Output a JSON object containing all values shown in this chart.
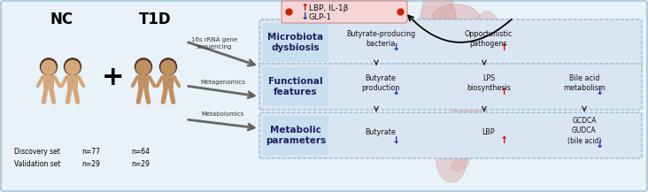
{
  "bg_color": "#e8f2f8",
  "nc_label": "NC",
  "t1d_label": "T1D",
  "plus_label": "+",
  "discovery_line1": "Discovery set",
  "discovery_n1": "n=77",
  "discovery_n2": "n=64",
  "validation_line1": "Validation set",
  "validation_n1": "n=29",
  "validation_n2": "n=29",
  "methods": [
    "16s rRNA gene\nsequencing",
    "Metagenomics",
    "Metabolomics"
  ],
  "row_labels": [
    "Microbiota\ndysbiosis",
    "Functional\nfeatures",
    "Metabolic\nparameters"
  ],
  "top_box_up": "↑ LBP, IL-1β",
  "top_box_down": "↓ GLP-1",
  "row1_col1": "Butyrate-producing\nbacteria",
  "row1_col2": "Opportunistic\npathogens",
  "row2_col1": "Butyrate\nproduction",
  "row2_col2": "LPS\nbiosynthesis",
  "row2_col3": "Bile acid\nmetabolism",
  "row3_col1": "Butyrate",
  "row3_col2": "LBP",
  "row3_col3": "GCDCA\nGUDCA\n(bile acid)",
  "box_fill": "#dae5f2",
  "box_edge": "#8aafc8",
  "top_box_fill": "#f5d5d5",
  "top_box_edge": "#cc8888",
  "arrow_black": "#222222",
  "arrow_red": "#cc1100",
  "arrow_blue": "#2233bb",
  "person_color_nc": "#d4a87a",
  "person_color_t1d": "#c09060",
  "person_hair": "#4a3020"
}
